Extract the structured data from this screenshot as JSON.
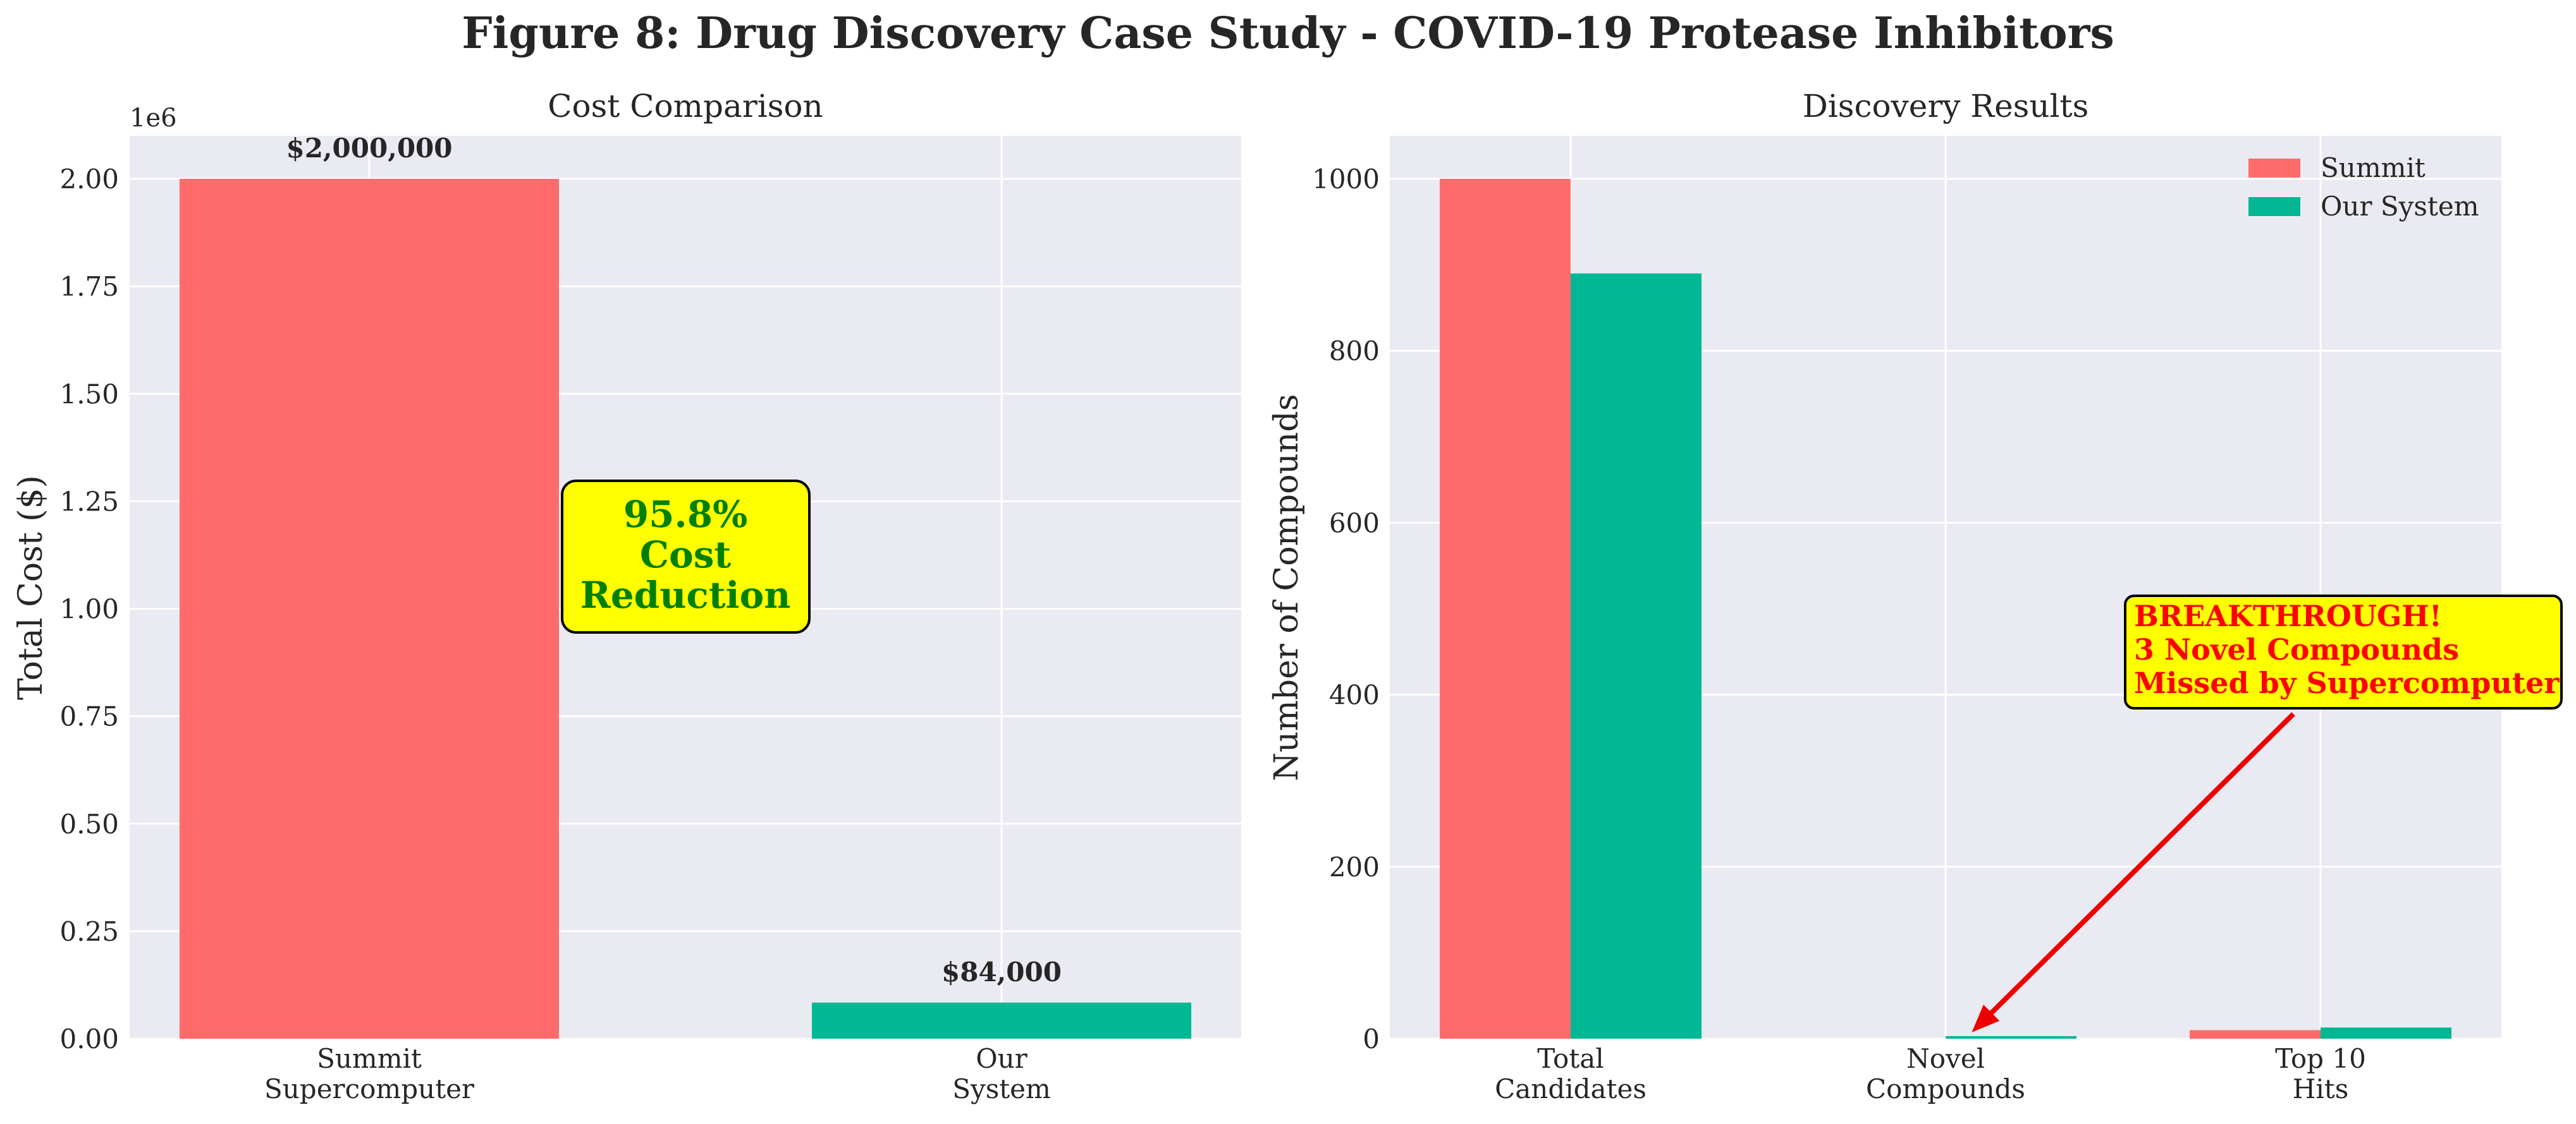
{
  "figure": {
    "title": "Figure 8: Drug Discovery Case Study - COVID-19 Protease Inhibitors"
  },
  "colors": {
    "summit": "#ff6b6b",
    "our_system": "#00b894",
    "axes_bg": "#eaeaf2",
    "grid": "#ffffff",
    "text": "#262626",
    "callout_bg": "#ffff00",
    "callout_green_text": "#008000",
    "callout_red_text": "#ff0000",
    "arrow": "#ee0000"
  },
  "chart_data": [
    {
      "type": "bar",
      "title": "Cost Comparison",
      "xlabel": "",
      "ylabel": "Total Cost ($)",
      "offset_label": "1e6",
      "categories": [
        "Summit\nSupercomputer",
        "Our\nSystem"
      ],
      "values": [
        2000000,
        84000
      ],
      "bar_colors": [
        "summit",
        "our_system"
      ],
      "value_labels": [
        "$2,000,000",
        "$84,000"
      ],
      "ylim": [
        0,
        2100000
      ],
      "yticks": [
        0,
        250000,
        500000,
        750000,
        1000000,
        1250000,
        1500000,
        1750000,
        2000000
      ],
      "ytick_labels": [
        "0.00",
        "0.25",
        "0.50",
        "0.75",
        "1.00",
        "1.25",
        "1.50",
        "1.75",
        "2.00"
      ],
      "grid": true,
      "annotation": {
        "text": "95.8%\nCost\nReduction"
      }
    },
    {
      "type": "bar",
      "title": "Discovery Results",
      "xlabel": "",
      "ylabel": "Number of Compounds",
      "categories": [
        "Total\nCandidates",
        "Novel\nCompounds",
        "Top 10\nHits"
      ],
      "series": [
        {
          "name": "Summit",
          "color": "summit",
          "values": [
            1000,
            0,
            10
          ]
        },
        {
          "name": "Our System",
          "color": "our_system",
          "values": [
            890,
            3,
            13
          ]
        }
      ],
      "ylim": [
        0,
        1050
      ],
      "yticks": [
        0,
        200,
        400,
        600,
        800,
        1000
      ],
      "ytick_labels": [
        "0",
        "200",
        "400",
        "600",
        "800",
        "1000"
      ],
      "grid": true,
      "legend": "top-right",
      "annotation": {
        "text": "BREAKTHROUGH!\n3 Novel Compounds\nMissed by Supercomputer",
        "arrow_target": {
          "category": "Novel\nCompounds",
          "series": "Our System",
          "value": 3
        }
      }
    }
  ]
}
